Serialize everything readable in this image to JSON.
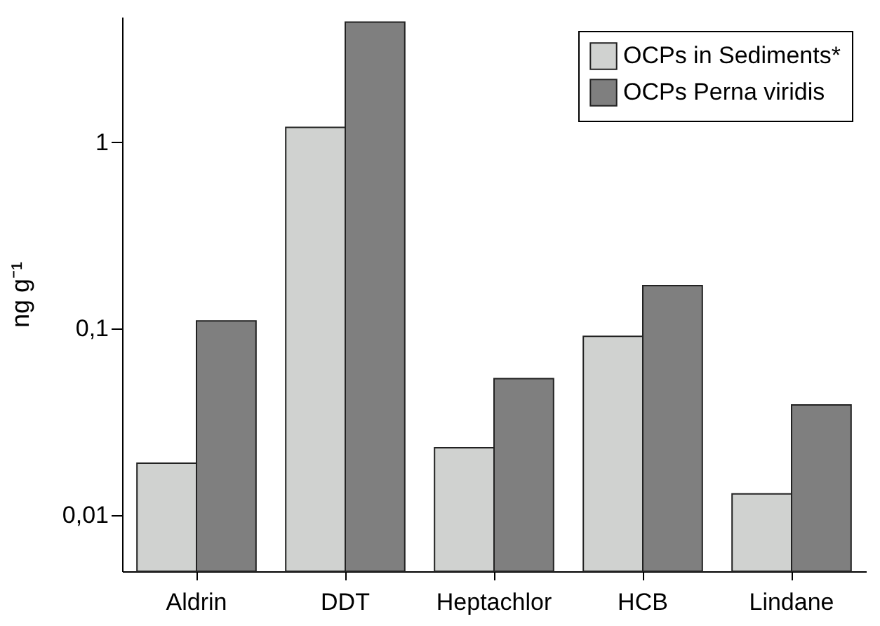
{
  "chart_data": {
    "type": "bar",
    "ylabel": "ng g⁻¹",
    "categories": [
      "Aldrin",
      "DDT",
      "Heptachlor",
      "HCB",
      "Lindane"
    ],
    "series": [
      {
        "name": "OCPs in Sediments*",
        "color": "#d0d2d0",
        "values": [
          0.019,
          1.2,
          0.023,
          0.091,
          0.013
        ]
      },
      {
        "name": "OCPs Perna viridis",
        "color": "#7f7f7f",
        "values": [
          0.11,
          4.4,
          0.054,
          0.17,
          0.039
        ]
      }
    ],
    "log": "y",
    "ylim": [
      0.005,
      4.7
    ],
    "yticks": [
      {
        "value": 0.01,
        "label": "0,01"
      },
      {
        "value": 0.1,
        "label": "0,1"
      },
      {
        "value": 1,
        "label": "1"
      }
    ],
    "grid": false,
    "legend": "top right"
  }
}
